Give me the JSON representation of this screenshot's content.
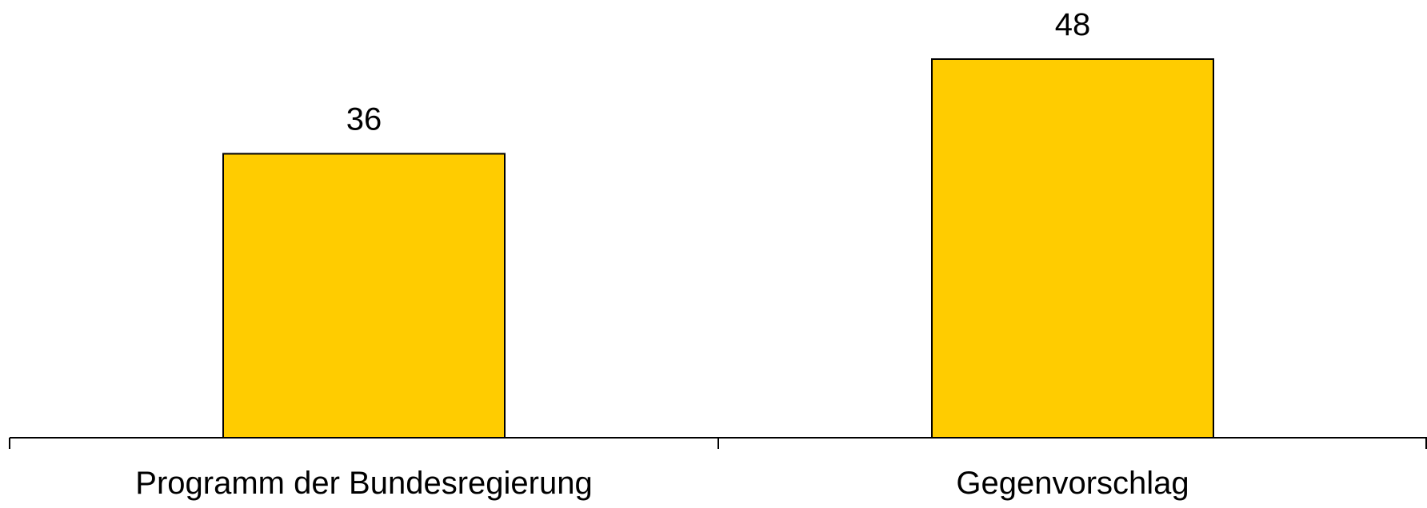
{
  "chart_data": {
    "type": "bar",
    "categories": [
      "Programm der Bundesregierung",
      "Gegenvorschlag"
    ],
    "values": [
      36,
      48
    ],
    "data_labels": [
      "36",
      "48"
    ],
    "ylim": [
      0,
      48
    ],
    "grid": false,
    "bar_color": "#FFCC00",
    "edge_color": "#000000"
  }
}
